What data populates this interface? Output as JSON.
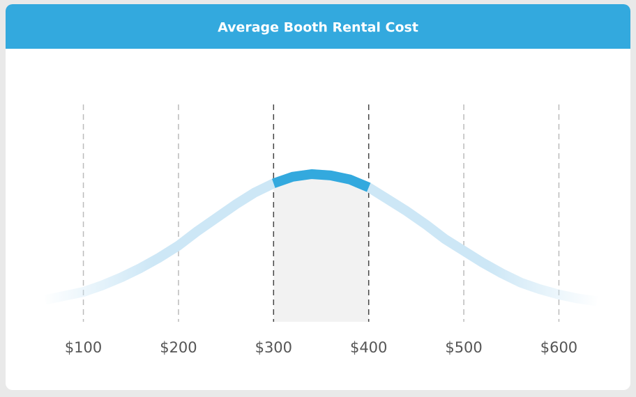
{
  "chart_data": {
    "type": "line",
    "title": "Average Booth Rental Cost",
    "x": [
      60,
      80,
      100,
      120,
      140,
      160,
      180,
      200,
      220,
      240,
      260,
      280,
      300,
      320,
      340,
      360,
      380,
      400,
      420,
      440,
      460,
      480,
      500,
      520,
      540,
      560,
      580,
      600,
      620,
      640
    ],
    "values": [
      5,
      8,
      11,
      16,
      22,
      29,
      37,
      46,
      57,
      67,
      77,
      86,
      93,
      98,
      100,
      99,
      96,
      90,
      81,
      72,
      62,
      51,
      42,
      33,
      25,
      18,
      13,
      9,
      6,
      4
    ],
    "xlim": [
      60,
      640
    ],
    "ylim": [
      0,
      100
    ],
    "xticks": [
      {
        "value": 100,
        "label": "$100"
      },
      {
        "value": 200,
        "label": "$200"
      },
      {
        "value": 300,
        "label": "$300"
      },
      {
        "value": 400,
        "label": "$400"
      },
      {
        "value": 500,
        "label": "$500"
      },
      {
        "value": 600,
        "label": "$600"
      }
    ],
    "highlight": [
      300,
      400
    ],
    "color": "#cde7f6",
    "highlight_color": "#33a9de"
  }
}
